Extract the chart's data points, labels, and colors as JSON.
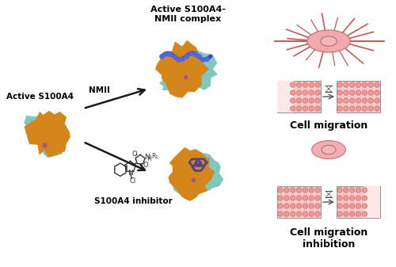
{
  "bg_color": "#ffffff",
  "orange_color": "#D4861A",
  "teal_color": "#7EC8C0",
  "pink_body": "#F0A0A8",
  "pink_light": "#F8D0D0",
  "pink_nucleus": "#F0B8B8",
  "pink_medium": "#EE9898",
  "pink_dark": "#C06060",
  "pink_dots_bg": "#F0AAAA",
  "blue_helix": "#3333BB",
  "blue_helix2": "#5566DD",
  "purple_mol": "#554488",
  "arrow_color": "#1a1a1a",
  "text_color": "#000000",
  "label_s100a4": "Active S100A4",
  "label_nmii": "NMII",
  "title_complex": "Active S100A4-\nNMII complex",
  "label_inhibitor": "S100A4 inhibitor",
  "label_migration": "Cell migration",
  "label_inhibition": "Cell migration\ninhibition"
}
